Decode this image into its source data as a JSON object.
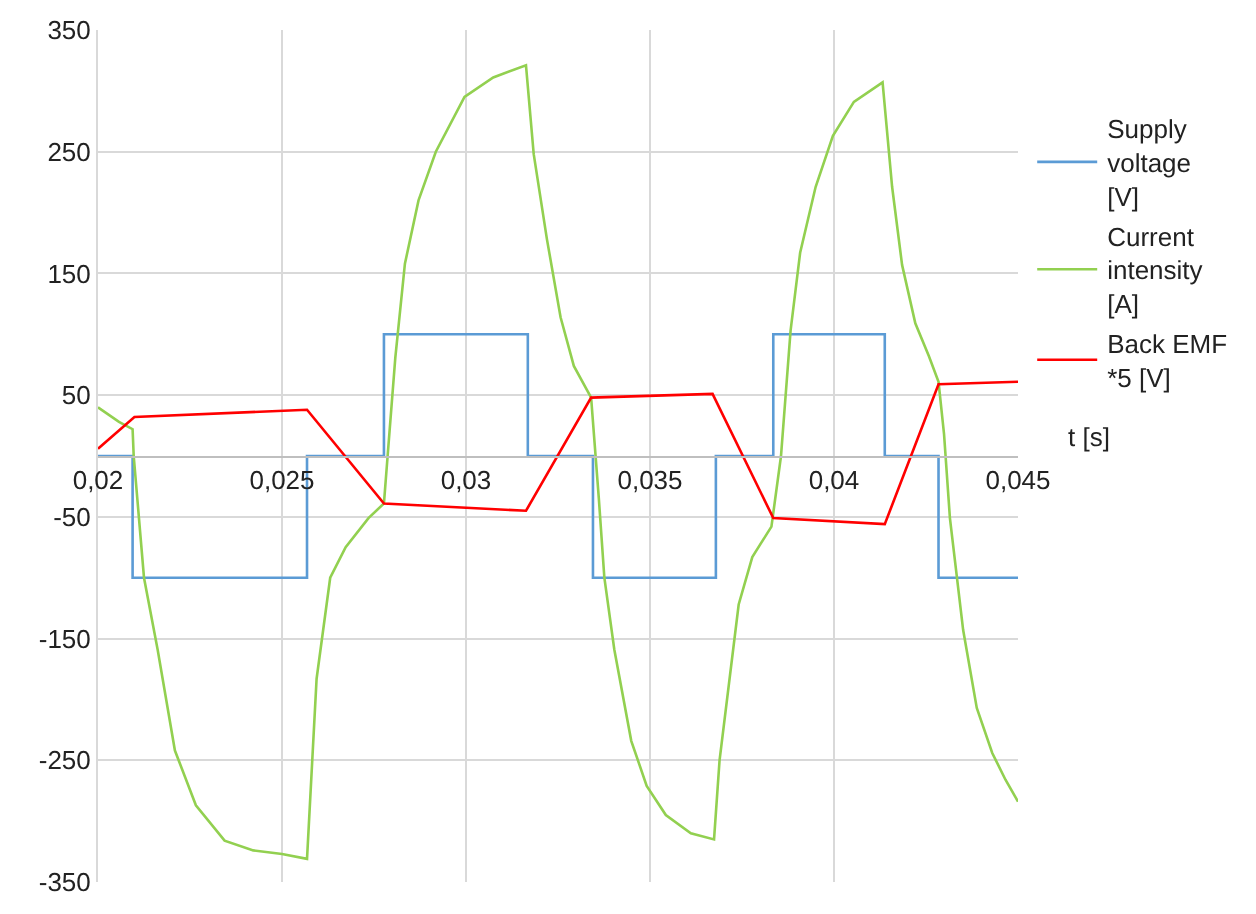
{
  "chart_data": {
    "type": "line",
    "xlabel": "t [s]",
    "xlim": [
      0.02,
      0.045
    ],
    "xticks": [
      {
        "value": 0.02,
        "label": "0,02"
      },
      {
        "value": 0.025,
        "label": "0,025"
      },
      {
        "value": 0.03,
        "label": "0,03"
      },
      {
        "value": 0.035,
        "label": "0,035"
      },
      {
        "value": 0.04,
        "label": "0,04"
      },
      {
        "value": 0.045,
        "label": "0,045"
      }
    ],
    "ylim": [
      -350,
      350
    ],
    "yticks": [
      -350,
      -250,
      -150,
      -50,
      50,
      150,
      250,
      350
    ],
    "grid": true,
    "legend": "right",
    "marker": "none",
    "line_style": "solid",
    "series": [
      {
        "name": "Supply voltage [V]",
        "type": "step",
        "color": "#5b9bd5",
        "x": [
          0.02,
          0.02094,
          0.02568,
          0.02777,
          0.03168,
          0.03345,
          0.03679,
          0.03835,
          0.04138,
          0.04284,
          0.045
        ],
        "values": [
          0,
          -100,
          0,
          100,
          0,
          -100,
          0,
          100,
          0,
          -100,
          -100
        ]
      },
      {
        "name": "Current intensity [A]",
        "color": "#92d050",
        "x": [
          0.02,
          0.02057,
          0.02094,
          0.02097,
          0.02125,
          0.02162,
          0.02209,
          0.02266,
          0.02344,
          0.02422,
          0.025,
          0.02568,
          0.02594,
          0.02631,
          0.02673,
          0.02735,
          0.02777,
          0.02787,
          0.02808,
          0.02834,
          0.02871,
          0.02918,
          0.02996,
          0.03074,
          0.03163,
          0.03184,
          0.0322,
          0.03257,
          0.03293,
          0.0334,
          0.03361,
          0.03376,
          0.03403,
          0.03449,
          0.03491,
          0.03543,
          0.03611,
          0.03674,
          0.03689,
          0.03726,
          0.03741,
          0.03778,
          0.0383,
          0.03856,
          0.03882,
          0.03908,
          0.0395,
          0.03997,
          0.04054,
          0.04132,
          0.04158,
          0.04185,
          0.04221,
          0.04258,
          0.04284,
          0.04299,
          0.04315,
          0.04351,
          0.04388,
          0.0443,
          0.04466,
          0.045
        ],
        "values": [
          40,
          28,
          22,
          0,
          -100,
          -159,
          -242,
          -287,
          -316,
          -324,
          -327,
          -331,
          -183,
          -100,
          -75,
          -51,
          -39,
          0,
          81,
          158,
          210,
          250,
          295,
          311,
          321,
          248,
          178,
          114,
          74,
          48,
          -35,
          -100,
          -159,
          -234,
          -271,
          -295,
          -310,
          -315,
          -250,
          -159,
          -122,
          -83,
          -58,
          0,
          103,
          167,
          221,
          263,
          291,
          307,
          221,
          157,
          109,
          82,
          61,
          18,
          -51,
          -143,
          -207,
          -244,
          -266,
          -284
        ]
      },
      {
        "name": "Back EMF *5 [V]",
        "color": "#ff0000",
        "x": [
          0.02,
          0.02099,
          0.02568,
          0.02777,
          0.03163,
          0.0334,
          0.0367,
          0.03835,
          0.04138,
          0.04284,
          0.045
        ],
        "values": [
          6,
          32,
          38,
          -39,
          -45,
          48,
          51,
          -51,
          -56,
          59,
          61
        ]
      }
    ]
  }
}
